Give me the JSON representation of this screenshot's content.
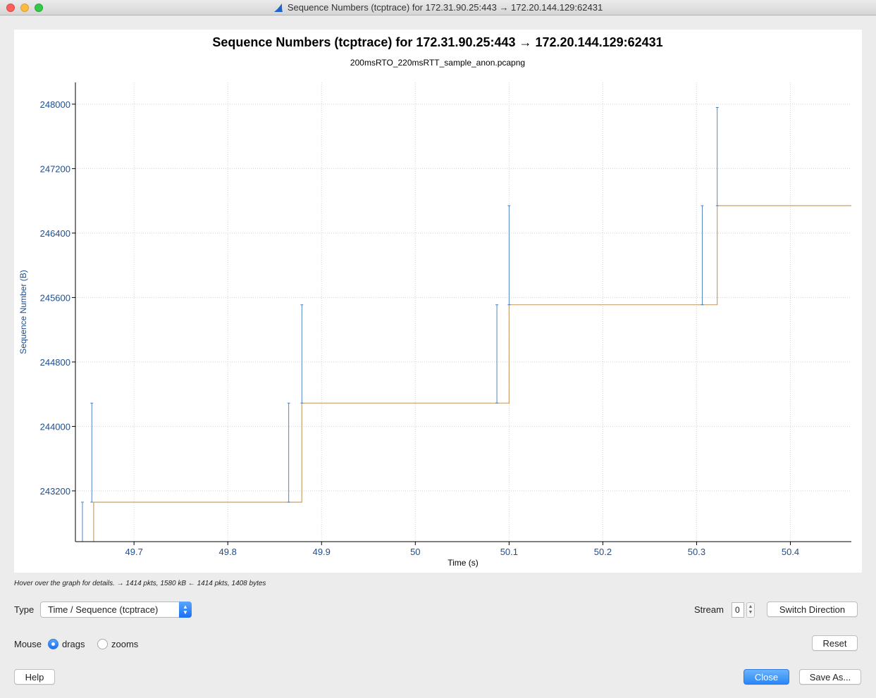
{
  "window": {
    "title": "Sequence Numbers (tcptrace) for 172.31.90.25:443 → 172.20.144.129:62431"
  },
  "chart_data": {
    "type": "line",
    "title": "Sequence Numbers (tcptrace) for 172.31.90.25:443 → 172.20.144.129:62431",
    "subtitle": "200msRTO_220msRTT_sample_anon.pcapng",
    "xlabel": "Time (s)",
    "ylabel": "Sequence Number (B)",
    "xlim": [
      49.6375,
      50.465
    ],
    "ylim": [
      242570,
      248270
    ],
    "x_ticks": [
      "49.7",
      "49.8",
      "49.9",
      "50",
      "50.1",
      "50.2",
      "50.3",
      "50.4"
    ],
    "x_tick_values": [
      49.7,
      49.8,
      49.9,
      50.0,
      50.1,
      50.2,
      50.3,
      50.4
    ],
    "y_ticks": [
      "243200",
      "244000",
      "244800",
      "245600",
      "246400",
      "247200",
      "248000"
    ],
    "y_tick_values": [
      243200,
      244000,
      244800,
      245600,
      246400,
      247200,
      248000
    ],
    "grid": true,
    "colors": {
      "segments": "#3e78b8",
      "ack_line": "#c8a06c",
      "axis_text": "#1f4e8c"
    },
    "segments": [
      {
        "x": 49.645,
        "y0": 242570,
        "y1": 243060
      },
      {
        "x": 49.655,
        "y0": 243060,
        "y1": 244290
      },
      {
        "x": 49.865,
        "y0": 243060,
        "y1": 244290
      },
      {
        "x": 49.879,
        "y0": 244290,
        "y1": 245510
      },
      {
        "x": 50.087,
        "y0": 244290,
        "y1": 245510
      },
      {
        "x": 50.1,
        "y0": 245510,
        "y1": 246740
      },
      {
        "x": 50.306,
        "y0": 245510,
        "y1": 246740
      },
      {
        "x": 50.322,
        "y0": 246740,
        "y1": 247960
      }
    ],
    "ack_line": {
      "x": [
        49.657,
        49.657,
        49.879,
        49.879,
        50.1,
        50.1,
        50.322,
        50.322,
        50.465
      ],
      "y": [
        242570,
        243060,
        243060,
        244290,
        244290,
        245510,
        245510,
        246740,
        246740
      ]
    }
  },
  "hint": "Hover over the graph for details. → 1414 pkts, 1580 kB ← 1414 pkts, 1408 bytes",
  "controls": {
    "type_label": "Type",
    "type_value": "Time / Sequence (tcptrace)",
    "stream_label": "Stream",
    "stream_value": "0",
    "switch_direction": "Switch Direction",
    "mouse_label": "Mouse",
    "drags": "drags",
    "zooms": "zooms",
    "reset": "Reset",
    "help": "Help",
    "close": "Close",
    "save_as": "Save As..."
  }
}
